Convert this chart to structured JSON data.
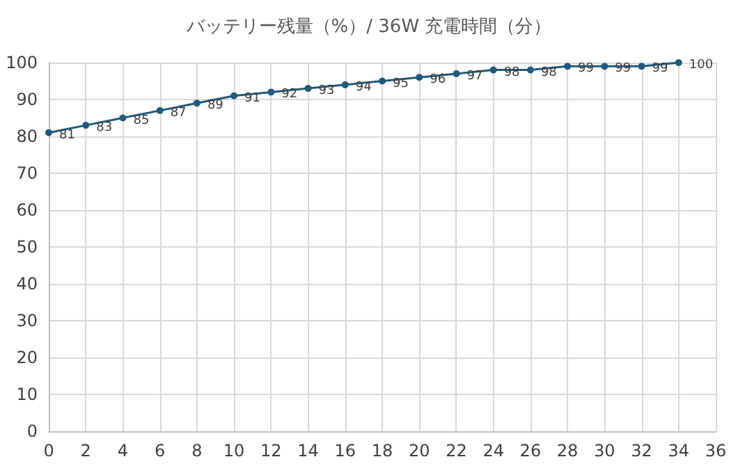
{
  "chart_data": {
    "type": "line",
    "title": "バッテリー残量（%）/ 36W 充電時間（分）",
    "x": [
      0,
      2,
      4,
      6,
      8,
      10,
      12,
      14,
      16,
      18,
      20,
      22,
      24,
      26,
      28,
      30,
      32,
      34
    ],
    "series": [
      {
        "color": "#1f5a7e",
        "values": [
          81,
          83,
          85,
          87,
          89,
          91,
          92,
          93,
          94,
          95,
          96,
          97,
          98,
          98,
          99,
          99,
          99,
          100
        ]
      }
    ],
    "xlim": [
      0,
      36
    ],
    "xticks": [
      0,
      2,
      4,
      6,
      8,
      10,
      12,
      14,
      16,
      18,
      20,
      22,
      24,
      26,
      28,
      30,
      32,
      34,
      36
    ],
    "ylim": [
      0,
      100
    ],
    "yticks": [
      0,
      10,
      20,
      30,
      40,
      50,
      60,
      70,
      80,
      90,
      100
    ],
    "grid": true,
    "marker": "circle",
    "line_style": "solid",
    "data_labels": true
  }
}
